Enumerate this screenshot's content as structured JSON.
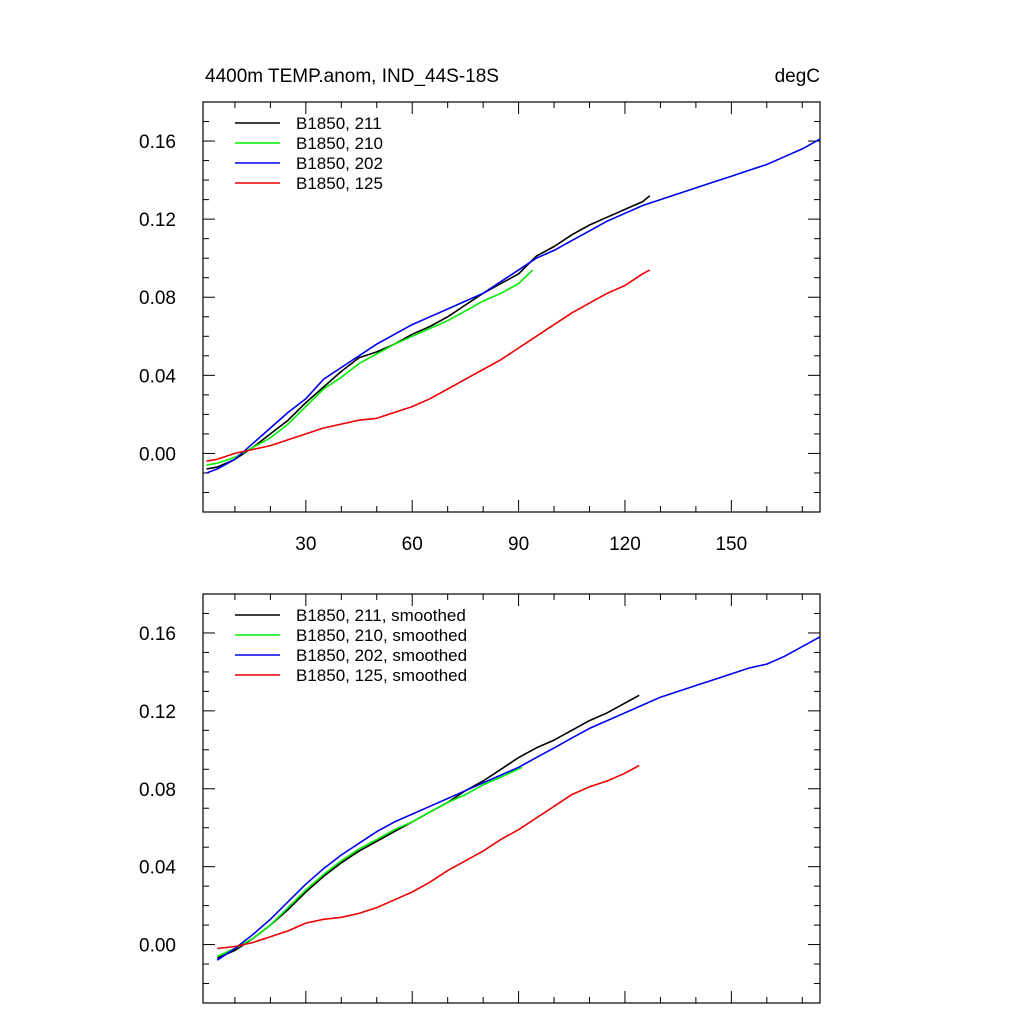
{
  "chart_data": [
    {
      "type": "line",
      "title_left": "4400m TEMP.anom, IND_44S-18S",
      "title_right": "degC",
      "xlabel": "",
      "ylabel": "",
      "xlim": [
        1,
        175
      ],
      "ylim": [
        -0.03,
        0.18
      ],
      "xticks": [
        30,
        60,
        90,
        120,
        150
      ],
      "xtick_labels": [
        "30",
        "60",
        "90",
        "120",
        "150"
      ],
      "yticks": [
        0.0,
        0.04,
        0.08,
        0.12,
        0.16
      ],
      "ytick_labels": [
        "0.00",
        "0.04",
        "0.08",
        "0.12",
        "0.16"
      ],
      "legend_position": "top-left",
      "series": [
        {
          "name": "B1850, 211",
          "color": "#000000",
          "x": [
            2,
            5,
            10,
            15,
            20,
            25,
            30,
            35,
            40,
            45,
            50,
            55,
            60,
            65,
            70,
            75,
            80,
            85,
            90,
            95,
            100,
            105,
            110,
            115,
            120,
            125,
            127
          ],
          "y": [
            -0.008,
            -0.007,
            -0.003,
            0.003,
            0.01,
            0.017,
            0.026,
            0.034,
            0.042,
            0.049,
            0.052,
            0.056,
            0.061,
            0.065,
            0.07,
            0.076,
            0.082,
            0.087,
            0.092,
            0.101,
            0.106,
            0.112,
            0.117,
            0.121,
            0.125,
            0.129,
            0.132
          ]
        },
        {
          "name": "B1850, 210",
          "color": "#00ee00",
          "x": [
            2,
            5,
            10,
            15,
            20,
            25,
            30,
            35,
            40,
            45,
            50,
            55,
            60,
            65,
            70,
            75,
            80,
            85,
            90,
            94
          ],
          "y": [
            -0.006,
            -0.005,
            -0.002,
            0.003,
            0.008,
            0.015,
            0.024,
            0.033,
            0.039,
            0.046,
            0.051,
            0.056,
            0.06,
            0.064,
            0.068,
            0.073,
            0.078,
            0.082,
            0.087,
            0.094
          ]
        },
        {
          "name": "B1850, 202",
          "color": "#0000ee",
          "x": [
            2,
            5,
            10,
            15,
            20,
            25,
            30,
            35,
            40,
            45,
            50,
            55,
            60,
            65,
            70,
            75,
            80,
            85,
            90,
            95,
            100,
            105,
            110,
            115,
            120,
            125,
            130,
            135,
            140,
            145,
            150,
            155,
            160,
            165,
            170,
            175
          ],
          "y": [
            -0.01,
            -0.008,
            -0.003,
            0.005,
            0.013,
            0.021,
            0.028,
            0.038,
            0.044,
            0.05,
            0.056,
            0.061,
            0.066,
            0.07,
            0.074,
            0.078,
            0.082,
            0.088,
            0.094,
            0.1,
            0.104,
            0.109,
            0.114,
            0.119,
            0.123,
            0.127,
            0.13,
            0.133,
            0.136,
            0.139,
            0.142,
            0.145,
            0.148,
            0.152,
            0.156,
            0.161
          ]
        },
        {
          "name": "B1850, 125",
          "color": "#ee0000",
          "x": [
            2,
            5,
            10,
            15,
            20,
            25,
            30,
            35,
            40,
            45,
            50,
            55,
            60,
            65,
            70,
            75,
            80,
            85,
            90,
            95,
            100,
            105,
            110,
            115,
            120,
            125,
            127
          ],
          "y": [
            -0.004,
            -0.003,
            0.0,
            0.002,
            0.004,
            0.007,
            0.01,
            0.013,
            0.015,
            0.017,
            0.018,
            0.021,
            0.024,
            0.028,
            0.033,
            0.038,
            0.043,
            0.048,
            0.054,
            0.06,
            0.066,
            0.072,
            0.077,
            0.082,
            0.086,
            0.092,
            0.094
          ]
        }
      ]
    },
    {
      "type": "line",
      "xlabel": "",
      "ylabel": "",
      "xlim": [
        1,
        175
      ],
      "ylim": [
        -0.03,
        0.18
      ],
      "xticks": [
        30,
        60,
        90,
        120,
        150
      ],
      "yticks": [
        0.0,
        0.04,
        0.08,
        0.12,
        0.16
      ],
      "ytick_labels": [
        "0.00",
        "0.04",
        "0.08",
        "0.12",
        "0.16"
      ],
      "legend_position": "top-left",
      "series": [
        {
          "name": "B1850, 211, smoothed",
          "color": "#000000",
          "x": [
            5,
            10,
            15,
            20,
            25,
            30,
            35,
            40,
            45,
            50,
            55,
            60,
            65,
            70,
            75,
            80,
            85,
            90,
            95,
            100,
            105,
            110,
            115,
            120,
            124
          ],
          "y": [
            -0.007,
            -0.003,
            0.003,
            0.01,
            0.018,
            0.027,
            0.035,
            0.042,
            0.048,
            0.053,
            0.058,
            0.063,
            0.068,
            0.073,
            0.079,
            0.084,
            0.09,
            0.096,
            0.101,
            0.105,
            0.11,
            0.115,
            0.119,
            0.124,
            0.128
          ]
        },
        {
          "name": "B1850, 210, smoothed",
          "color": "#00ee00",
          "x": [
            5,
            10,
            15,
            20,
            25,
            30,
            35,
            40,
            45,
            50,
            55,
            60,
            65,
            70,
            75,
            80,
            85,
            91
          ],
          "y": [
            -0.006,
            -0.002,
            0.003,
            0.01,
            0.019,
            0.028,
            0.036,
            0.043,
            0.049,
            0.054,
            0.059,
            0.063,
            0.068,
            0.073,
            0.077,
            0.082,
            0.086,
            0.091
          ]
        },
        {
          "name": "B1850, 202, smoothed",
          "color": "#0000ee",
          "x": [
            5,
            10,
            15,
            20,
            25,
            30,
            35,
            40,
            45,
            50,
            55,
            60,
            65,
            70,
            75,
            80,
            85,
            90,
            95,
            100,
            105,
            110,
            115,
            120,
            125,
            130,
            135,
            140,
            145,
            150,
            155,
            160,
            165,
            170,
            175
          ],
          "y": [
            -0.008,
            -0.002,
            0.005,
            0.013,
            0.022,
            0.031,
            0.039,
            0.046,
            0.052,
            0.058,
            0.063,
            0.067,
            0.071,
            0.075,
            0.079,
            0.083,
            0.087,
            0.091,
            0.096,
            0.101,
            0.106,
            0.111,
            0.115,
            0.119,
            0.123,
            0.127,
            0.13,
            0.133,
            0.136,
            0.139,
            0.142,
            0.144,
            0.148,
            0.153,
            0.158
          ]
        },
        {
          "name": "B1850, 125, smoothed",
          "color": "#ee0000",
          "x": [
            5,
            10,
            15,
            20,
            25,
            30,
            35,
            40,
            45,
            50,
            55,
            60,
            65,
            70,
            75,
            80,
            85,
            90,
            95,
            100,
            105,
            110,
            115,
            120,
            124
          ],
          "y": [
            -0.002,
            -0.001,
            0.001,
            0.004,
            0.007,
            0.011,
            0.013,
            0.014,
            0.016,
            0.019,
            0.023,
            0.027,
            0.032,
            0.038,
            0.043,
            0.048,
            0.054,
            0.059,
            0.065,
            0.071,
            0.077,
            0.081,
            0.084,
            0.088,
            0.092
          ]
        }
      ]
    }
  ]
}
